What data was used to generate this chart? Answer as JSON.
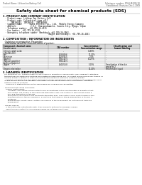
{
  "bg_color": "#ffffff",
  "header_left": "Product Name: Lithium Ion Battery Cell",
  "header_right_line1": "Substance number: SDS-LIB-000-10",
  "header_right_line2": "Established / Revision: Dec.1.2009",
  "title": "Safety data sheet for chemical products (SDS)",
  "section1_title": "1. PRODUCT AND COMPANY IDENTIFICATION",
  "section1_lines": [
    "  · Product name: Lithium Ion Battery Cell",
    "  · Product code: Cylindrical-type cell",
    "       INR18650J, INR18650L, INR18650A",
    "  · Company name:      Sanyo Electric Co., Ltd.  Mobile Energy Company",
    "  · Address:            2-1-1  Kamionakamachi, Sumoto-City, Hyogo, Japan",
    "  · Telephone number:  +81-799-26-4111",
    "  · Fax number:  +81-799-26-4120",
    "  · Emergency telephone number (Weekday): +81-799-26-3962",
    "                                       (Night and holiday): +81-799-26-4101"
  ],
  "section2_title": "2. COMPOSITION / INFORMATION ON INGREDIENTS",
  "section2_sub": "  · Substance or preparation: Preparation",
  "section2_sub2": "  · Information about the chemical nature of product:",
  "table_col0_header1": "Component chemical name",
  "table_col0_header2": "Several name",
  "table_col1_header": "CAS number",
  "table_col2_header1": "Concentration /",
  "table_col2_header2": "Concentration range",
  "table_col3_header1": "Classification and",
  "table_col3_header2": "hazard labeling",
  "table_rows": [
    [
      "Lithium cobalt oxide",
      "-",
      "30-60%",
      "-"
    ],
    [
      "(LiMnO2(LCO))",
      "",
      "",
      ""
    ],
    [
      "Iron",
      "7439-89-6",
      "10-20%",
      "-"
    ],
    [
      "Aluminum",
      "7429-90-5",
      "2-5%",
      "-"
    ],
    [
      "Graphite",
      "7782-42-5",
      "10-25%",
      "-"
    ],
    [
      "(Natural graphite+",
      "7782-42-5",
      "",
      ""
    ],
    [
      "Artificial graphite)",
      "",
      "",
      ""
    ],
    [
      "Copper",
      "7440-50-8",
      "5-15%",
      "Sensitization of the skin"
    ],
    [
      "",
      "",
      "",
      "group No.2"
    ],
    [
      "Organic electrolyte",
      "-",
      "10-20%",
      "Inflammable liquid"
    ]
  ],
  "section3_title": "3. HAZARDS IDENTIFICATION",
  "section3_body": [
    "   For this battery cell, chemical materials are stored in a hermetically sealed metal case, designed to withstand",
    "   temperatures encountered in portable-use conditions during normal use. As a result, during normal use, there is no",
    "   physical danger of ignition or explosion and therefore danger of hazardous materials leakage.",
    "      However, if exposed to a fire, added mechanical shocks, decomposed, and/or electric short-circuiting may occur.",
    "   Its gas release vent will be operated. The battery cell case will be breached at fire-extreme. Hazardous",
    "   materials may be released.",
    "      Moreover, if heated strongly by the surrounding fire, solid gas may be emitted.",
    "",
    "  · Most important hazard and effects:",
    "      Human health effects:",
    "         Inhalation: The release of the electrolyte has an anesthesia action and stimulates a respiratory tract.",
    "         Skin contact: The release of the electrolyte stimulates a skin. The electrolyte skin contact causes a",
    "         sore and stimulation on the skin.",
    "         Eye contact: The release of the electrolyte stimulates eyes. The electrolyte eye contact causes a sore",
    "         and stimulation on the eye. Especially, a substance that causes a strong inflammation of the eye is",
    "         contained.",
    "         Environmental effects: Since a battery cell remains in the environment, do not throw out it into the",
    "         environment.",
    "",
    "  · Specific hazards:",
    "      If the electrolyte contacts with water, it will generate detrimental hydrogen fluoride.",
    "      Since the seal-electrolyte is inflammable liquid, do not bring close to fire."
  ],
  "footer_line": true
}
